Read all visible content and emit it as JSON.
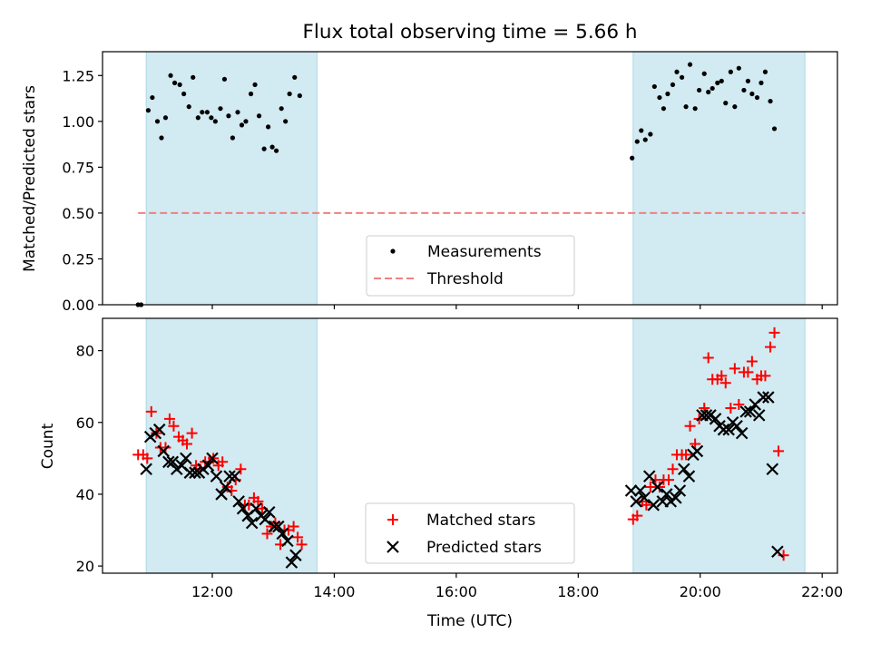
{
  "chart_data": [
    {
      "type": "scatter",
      "title": "Flux total observing time = 5.66 h",
      "xlabel": "",
      "ylabel": "Matched/Predicted stars",
      "xlim": [
        "10:12",
        "22:15"
      ],
      "ylim": [
        0,
        1.38
      ],
      "yticks": [
        "0.00",
        "0.25",
        "0.50",
        "0.75",
        "1.00",
        "1.25"
      ],
      "shaded_spans": [
        [
          "10:55",
          "13:43"
        ],
        [
          "18:54",
          "21:43"
        ]
      ],
      "shade_color": "#add8e6",
      "series": [
        {
          "name": "Measurements",
          "marker": "dot",
          "color": "#000000",
          "points": [
            [
              "10:47",
              0.0
            ],
            [
              "10:50",
              0.0
            ],
            [
              "10:57",
              1.06
            ],
            [
              "11:01",
              1.13
            ],
            [
              "11:06",
              1.0
            ],
            [
              "11:10",
              0.91
            ],
            [
              "11:14",
              1.02
            ],
            [
              "11:19",
              1.25
            ],
            [
              "11:23",
              1.21
            ],
            [
              "11:28",
              1.2
            ],
            [
              "11:32",
              1.15
            ],
            [
              "11:37",
              1.08
            ],
            [
              "11:41",
              1.24
            ],
            [
              "11:46",
              1.02
            ],
            [
              "11:50",
              1.05
            ],
            [
              "11:55",
              1.05
            ],
            [
              "11:59",
              1.02
            ],
            [
              "12:03",
              1.0
            ],
            [
              "12:08",
              1.07
            ],
            [
              "12:12",
              1.23
            ],
            [
              "12:16",
              1.03
            ],
            [
              "12:20",
              0.91
            ],
            [
              "12:25",
              1.05
            ],
            [
              "12:29",
              0.98
            ],
            [
              "12:33",
              1.0
            ],
            [
              "12:38",
              1.15
            ],
            [
              "12:42",
              1.2
            ],
            [
              "12:46",
              1.03
            ],
            [
              "12:51",
              0.85
            ],
            [
              "12:55",
              0.97
            ],
            [
              "12:59",
              0.86
            ],
            [
              "13:03",
              0.84
            ],
            [
              "13:08",
              1.07
            ],
            [
              "13:12",
              1.0
            ],
            [
              "13:16",
              1.15
            ],
            [
              "13:21",
              1.24
            ],
            [
              "13:26",
              1.14
            ],
            [
              "18:53",
              0.8
            ],
            [
              "18:58",
              0.89
            ],
            [
              "19:02",
              0.95
            ],
            [
              "19:06",
              0.9
            ],
            [
              "19:11",
              0.93
            ],
            [
              "19:15",
              1.19
            ],
            [
              "19:20",
              1.13
            ],
            [
              "19:24",
              1.07
            ],
            [
              "19:28",
              1.15
            ],
            [
              "19:33",
              1.2
            ],
            [
              "19:37",
              1.27
            ],
            [
              "19:42",
              1.24
            ],
            [
              "19:46",
              1.08
            ],
            [
              "19:50",
              1.31
            ],
            [
              "19:55",
              1.07
            ],
            [
              "19:59",
              1.17
            ],
            [
              "20:04",
              1.26
            ],
            [
              "20:08",
              1.16
            ],
            [
              "20:12",
              1.18
            ],
            [
              "20:17",
              1.21
            ],
            [
              "20:21",
              1.22
            ],
            [
              "20:25",
              1.1
            ],
            [
              "20:30",
              1.27
            ],
            [
              "20:34",
              1.08
            ],
            [
              "20:38",
              1.29
            ],
            [
              "20:43",
              1.17
            ],
            [
              "20:47",
              1.22
            ],
            [
              "20:51",
              1.15
            ],
            [
              "20:56",
              1.13
            ],
            [
              "21:00",
              1.21
            ],
            [
              "21:04",
              1.27
            ],
            [
              "21:09",
              1.11
            ],
            [
              "21:13",
              0.96
            ]
          ]
        },
        {
          "name": "Threshold",
          "marker": "dashed-line",
          "color": "#f08080",
          "points": [
            [
              "10:47",
              0.5
            ],
            [
              "21:43",
              0.5
            ]
          ]
        }
      ],
      "legend_placement": "lower-center"
    },
    {
      "type": "scatter",
      "title": "",
      "xlabel": "Time (UTC)",
      "ylabel": "Count",
      "xlim": [
        "10:12",
        "22:15"
      ],
      "ylim": [
        18,
        89
      ],
      "xticks": [
        "12:00",
        "14:00",
        "16:00",
        "18:00",
        "20:00",
        "22:00"
      ],
      "yticks": [
        "20",
        "40",
        "60",
        "80"
      ],
      "shaded_spans": [
        [
          "10:55",
          "13:43"
        ],
        [
          "18:54",
          "21:43"
        ]
      ],
      "shade_color": "#add8e6",
      "series": [
        {
          "name": "Matched stars",
          "marker": "plus",
          "color": "#ff0000",
          "points": [
            [
              "10:47",
              51
            ],
            [
              "10:52",
              51
            ],
            [
              "10:56",
              50
            ],
            [
              "11:00",
              63
            ],
            [
              "11:05",
              57
            ],
            [
              "11:09",
              53
            ],
            [
              "11:14",
              53
            ],
            [
              "11:18",
              61
            ],
            [
              "11:22",
              59
            ],
            [
              "11:27",
              56
            ],
            [
              "11:31",
              55
            ],
            [
              "11:35",
              54
            ],
            [
              "11:40",
              57
            ],
            [
              "11:44",
              48
            ],
            [
              "11:48",
              47
            ],
            [
              "11:53",
              49
            ],
            [
              "11:57",
              49
            ],
            [
              "12:01",
              50
            ],
            [
              "12:06",
              48
            ],
            [
              "12:10",
              49
            ],
            [
              "12:15",
              42
            ],
            [
              "12:19",
              41
            ],
            [
              "12:23",
              44
            ],
            [
              "12:28",
              47
            ],
            [
              "12:32",
              37
            ],
            [
              "12:36",
              37
            ],
            [
              "12:41",
              39
            ],
            [
              "12:45",
              38
            ],
            [
              "12:49",
              36
            ],
            [
              "12:54",
              29
            ],
            [
              "12:58",
              31
            ],
            [
              "13:02",
              32
            ],
            [
              "13:07",
              26
            ],
            [
              "13:11",
              30
            ],
            [
              "13:15",
              30
            ],
            [
              "13:20",
              31
            ],
            [
              "13:24",
              28
            ],
            [
              "13:28",
              26
            ],
            [
              "18:54",
              33
            ],
            [
              "18:58",
              34
            ],
            [
              "19:03",
              38
            ],
            [
              "19:07",
              37
            ],
            [
              "19:11",
              42
            ],
            [
              "19:16",
              44
            ],
            [
              "19:20",
              42
            ],
            [
              "19:24",
              44
            ],
            [
              "19:29",
              44
            ],
            [
              "19:33",
              47
            ],
            [
              "19:37",
              51
            ],
            [
              "19:42",
              51
            ],
            [
              "19:46",
              51
            ],
            [
              "19:50",
              59
            ],
            [
              "19:55",
              54
            ],
            [
              "19:59",
              61
            ],
            [
              "20:04",
              64
            ],
            [
              "20:08",
              78
            ],
            [
              "20:12",
              72
            ],
            [
              "20:17",
              72
            ],
            [
              "20:21",
              73
            ],
            [
              "20:25",
              71
            ],
            [
              "20:30",
              64
            ],
            [
              "20:34",
              75
            ],
            [
              "20:38",
              65
            ],
            [
              "20:43",
              74
            ],
            [
              "20:47",
              74
            ],
            [
              "20:51",
              77
            ],
            [
              "20:56",
              72
            ],
            [
              "21:00",
              73
            ],
            [
              "21:04",
              73
            ],
            [
              "21:09",
              81
            ],
            [
              "21:13",
              85
            ],
            [
              "21:17",
              52
            ],
            [
              "21:22",
              23
            ]
          ]
        },
        {
          "name": "Predicted stars",
          "marker": "x",
          "color": "#000000",
          "points": [
            [
              "10:55",
              47
            ],
            [
              "10:59",
              56
            ],
            [
              "11:04",
              57
            ],
            [
              "11:08",
              58
            ],
            [
              "11:12",
              52
            ],
            [
              "11:17",
              49
            ],
            [
              "11:21",
              49
            ],
            [
              "11:25",
              47
            ],
            [
              "11:30",
              48
            ],
            [
              "11:34",
              50
            ],
            [
              "11:38",
              46
            ],
            [
              "11:43",
              46
            ],
            [
              "11:47",
              46
            ],
            [
              "11:51",
              47
            ],
            [
              "11:56",
              48
            ],
            [
              "12:00",
              50
            ],
            [
              "12:04",
              45
            ],
            [
              "12:09",
              40
            ],
            [
              "12:13",
              42
            ],
            [
              "12:17",
              45
            ],
            [
              "12:22",
              45
            ],
            [
              "12:26",
              38
            ],
            [
              "12:30",
              36
            ],
            [
              "12:35",
              34
            ],
            [
              "12:39",
              32
            ],
            [
              "12:43",
              36
            ],
            [
              "12:48",
              34
            ],
            [
              "12:52",
              33
            ],
            [
              "12:56",
              35
            ],
            [
              "13:01",
              31
            ],
            [
              "13:05",
              31
            ],
            [
              "13:09",
              29
            ],
            [
              "13:14",
              27
            ],
            [
              "13:18",
              21
            ],
            [
              "13:22",
              23
            ],
            [
              "18:52",
              41
            ],
            [
              "18:57",
              38
            ],
            [
              "19:01",
              41
            ],
            [
              "19:05",
              39
            ],
            [
              "19:10",
              45
            ],
            [
              "19:14",
              37
            ],
            [
              "19:18",
              42
            ],
            [
              "19:23",
              38
            ],
            [
              "19:27",
              40
            ],
            [
              "19:31",
              38
            ],
            [
              "19:36",
              39
            ],
            [
              "19:40",
              41
            ],
            [
              "19:44",
              47
            ],
            [
              "19:49",
              45
            ],
            [
              "19:53",
              51
            ],
            [
              "19:57",
              52
            ],
            [
              "20:02",
              62
            ],
            [
              "20:06",
              62
            ],
            [
              "20:10",
              62
            ],
            [
              "20:15",
              61
            ],
            [
              "20:19",
              59
            ],
            [
              "20:23",
              58
            ],
            [
              "20:28",
              58
            ],
            [
              "20:32",
              60
            ],
            [
              "20:36",
              59
            ],
            [
              "20:41",
              57
            ],
            [
              "20:45",
              63
            ],
            [
              "20:49",
              63
            ],
            [
              "20:54",
              65
            ],
            [
              "20:58",
              62
            ],
            [
              "21:02",
              67
            ],
            [
              "21:07",
              67
            ],
            [
              "21:11",
              47
            ],
            [
              "21:16",
              24
            ]
          ]
        }
      ],
      "legend_placement": "lower-center"
    }
  ]
}
